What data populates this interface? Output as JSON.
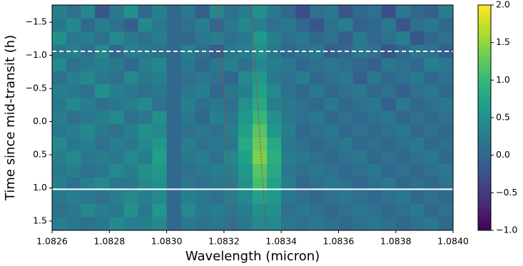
{
  "chart_data": {
    "type": "heatmap",
    "xlabel": "Wavelength (micron)",
    "ylabel": "Time since mid-transit (h)",
    "x": [
      1.082625,
      1.082675,
      1.082725,
      1.082775,
      1.082825,
      1.082875,
      1.082925,
      1.082975,
      1.083025,
      1.083075,
      1.083125,
      1.083175,
      1.083225,
      1.083275,
      1.083325,
      1.083375,
      1.083425,
      1.083475,
      1.083525,
      1.083575,
      1.083625,
      1.083675,
      1.083725,
      1.083775,
      1.083825,
      1.083875,
      1.083925,
      1.083975
    ],
    "y": [
      -1.66,
      -1.46,
      -1.26,
      -1.06,
      -0.86,
      -0.66,
      -0.46,
      -0.26,
      -0.06,
      0.14,
      0.34,
      0.54,
      0.74,
      0.94,
      1.14,
      1.34,
      1.54
    ],
    "z": [
      [
        0.3,
        0.1,
        0.4,
        -0.2,
        0.2,
        0.5,
        0.0,
        0.3,
        0,
        0.2,
        -0.1,
        0.4,
        0.1,
        0.3,
        0.5,
        0.2,
        0.0,
        -0.3,
        0.1,
        0.2,
        -0.2,
        0.0,
        0.1,
        -0.3,
        0.2,
        0.0,
        -0.1,
        0.3
      ],
      [
        0.2,
        0.4,
        0.0,
        0.3,
        0.1,
        -0.1,
        0.4,
        0.2,
        0,
        0.1,
        0.3,
        0.0,
        0.2,
        0.4,
        0.3,
        0.1,
        0.2,
        0.0,
        -0.2,
        0.1,
        0.3,
        -0.1,
        0.0,
        0.2,
        -0.2,
        0.1,
        0.2,
        0.0
      ],
      [
        0.5,
        0.2,
        0.3,
        0.1,
        0.4,
        0.2,
        0.1,
        0.3,
        0,
        0.0,
        0.2,
        0.3,
        0.1,
        0.2,
        0.6,
        0.3,
        0.1,
        0.2,
        0.0,
        0.1,
        -0.1,
        0.2,
        0.0,
        0.1,
        0.3,
        -0.2,
        0.0,
        0.1
      ],
      [
        0.2,
        0.3,
        0.1,
        0.4,
        0.0,
        0.3,
        0.2,
        0.1,
        0,
        0.3,
        0.1,
        -0.1,
        0.2,
        0.3,
        0.5,
        0.2,
        0.0,
        0.1,
        0.2,
        -0.1,
        0.0,
        0.2,
        0.1,
        -0.2,
        0.0,
        0.2,
        0.1,
        -0.1
      ],
      [
        0.4,
        0.1,
        0.2,
        0.3,
        0.2,
        0.0,
        0.3,
        0.4,
        0,
        0.2,
        0.0,
        0.2,
        0.3,
        0.1,
        0.4,
        0.3,
        0.2,
        0.0,
        0.1,
        0.2,
        0.1,
        0.0,
        -0.1,
        0.2,
        0.1,
        0.0,
        0.3,
        0.2
      ],
      [
        0.1,
        0.3,
        0.4,
        0.2,
        0.1,
        0.4,
        0.2,
        0.3,
        0,
        0.1,
        0.2,
        0.1,
        0.0,
        0.4,
        0.6,
        0.2,
        0.1,
        0.3,
        0.0,
        0.1,
        0.2,
        -0.1,
        0.2,
        0.0,
        0.1,
        0.2,
        0.0,
        0.1
      ],
      [
        0.3,
        0.2,
        0.1,
        0.5,
        0.3,
        0.2,
        0.1,
        0.2,
        0,
        0.2,
        0.3,
        0.0,
        0.2,
        0.3,
        0.7,
        0.4,
        0.1,
        0.0,
        0.2,
        0.0,
        0.1,
        0.2,
        0.0,
        0.1,
        -0.1,
        0.1,
        0.2,
        0.0
      ],
      [
        0.2,
        0.4,
        0.3,
        0.1,
        0.2,
        0.3,
        0.4,
        0.1,
        0,
        0.3,
        0.1,
        0.2,
        0.1,
        0.5,
        0.8,
        0.3,
        0.2,
        0.1,
        0.0,
        0.2,
        0.0,
        0.1,
        0.2,
        -0.1,
        0.2,
        0.0,
        0.1,
        0.2
      ],
      [
        0.3,
        0.1,
        0.2,
        0.3,
        0.4,
        0.1,
        0.2,
        0.5,
        0,
        0.2,
        0.0,
        0.3,
        0.2,
        0.6,
        1.0,
        0.5,
        0.2,
        0.1,
        0.2,
        0.0,
        0.1,
        0.0,
        0.1,
        0.2,
        0.0,
        0.1,
        0.0,
        0.1
      ],
      [
        0.2,
        0.3,
        0.4,
        0.2,
        0.1,
        0.3,
        0.5,
        0.4,
        0,
        0.1,
        0.2,
        0.1,
        0.3,
        0.7,
        1.2,
        0.6,
        0.3,
        0.0,
        0.1,
        0.2,
        0.0,
        0.1,
        0.0,
        0.1,
        0.2,
        0.0,
        0.1,
        0.0
      ],
      [
        0.4,
        0.2,
        0.3,
        0.1,
        0.3,
        0.2,
        0.4,
        0.6,
        0,
        0.3,
        0.1,
        0.2,
        0.2,
        0.8,
        1.3,
        0.8,
        0.2,
        0.1,
        0.0,
        0.1,
        0.2,
        0.0,
        0.1,
        0.0,
        0.1,
        0.2,
        0.0,
        0.1
      ],
      [
        0.3,
        0.4,
        0.2,
        0.3,
        0.2,
        0.4,
        0.3,
        0.7,
        0,
        0.2,
        0.3,
        0.1,
        0.4,
        0.7,
        1.4,
        0.9,
        0.3,
        0.2,
        0.1,
        0.0,
        0.1,
        0.2,
        0.0,
        0.1,
        0.0,
        0.1,
        0.2,
        0.0
      ],
      [
        0.2,
        0.3,
        0.1,
        0.2,
        0.4,
        0.3,
        0.5,
        0.6,
        0,
        0.1,
        0.2,
        0.3,
        0.3,
        0.6,
        1.2,
        0.8,
        0.2,
        0.1,
        0.2,
        0.1,
        0.0,
        0.1,
        0.2,
        0.0,
        0.1,
        0.0,
        0.1,
        0.2
      ],
      [
        0.3,
        0.1,
        0.3,
        0.4,
        0.2,
        0.2,
        0.4,
        0.5,
        0,
        0.2,
        0.1,
        0.2,
        0.2,
        0.5,
        1.1,
        0.7,
        0.3,
        0.0,
        0.1,
        0.2,
        0.1,
        0.0,
        0.1,
        0.2,
        0.0,
        0.1,
        0.0,
        0.1
      ],
      [
        0.2,
        0.3,
        0.2,
        0.1,
        0.3,
        0.4,
        0.3,
        0.4,
        0,
        0.3,
        0.2,
        0.1,
        0.3,
        0.4,
        0.7,
        0.6,
        0.2,
        0.1,
        0.0,
        0.1,
        0.2,
        0.1,
        0.0,
        0.1,
        0.2,
        0.0,
        0.1,
        0.0
      ],
      [
        0.1,
        0.2,
        0.4,
        0.3,
        0.2,
        0.5,
        0.2,
        0.6,
        0,
        0.4,
        0.2,
        0.3,
        0.2,
        0.3,
        0.5,
        0.5,
        0.1,
        0.2,
        0.1,
        0.0,
        0.1,
        0.2,
        0.1,
        0.0,
        0.1,
        0.2,
        0.0,
        0.1
      ],
      [
        0.3,
        0.2,
        0.1,
        0.2,
        0.4,
        0.3,
        0.3,
        0.4,
        0,
        0.2,
        0.1,
        0.2,
        0.1,
        0.2,
        0.4,
        0.4,
        0.2,
        0.1,
        0.2,
        0.1,
        0.0,
        0.1,
        0.2,
        0.1,
        0.0,
        0.1,
        0.2,
        0.0
      ]
    ],
    "xlim": [
      1.0826,
      1.084
    ],
    "xticks": [
      1.0826,
      1.0828,
      {
        "value": 1.083,
        "label": "1.0830"
      },
      1.0832,
      1.0834,
      1.0836,
      1.0838,
      {
        "value": 1.084,
        "label": "1.0840"
      }
    ],
    "ylim": [
      -1.76,
      1.64
    ],
    "invert_y": true,
    "yticks": [
      {
        "value": -1.5,
        "label": "−1.5"
      },
      {
        "value": -1.0,
        "label": "−1.0"
      },
      {
        "value": -0.5,
        "label": "−0.5"
      },
      {
        "value": 0,
        "label": "0.0"
      },
      {
        "value": 0.5,
        "label": "0.5"
      },
      {
        "value": 1.0,
        "label": "1.0"
      },
      {
        "value": 1.5,
        "label": "1.5"
      }
    ],
    "colormap": "viridis",
    "clim": [
      -1.0,
      2.0
    ],
    "cticks": [
      {
        "value": -1.0,
        "label": "−1.0"
      },
      {
        "value": -0.5,
        "label": "−0.5"
      },
      {
        "value": 0,
        "label": "0.0"
      },
      {
        "value": 0.5,
        "label": "0.5"
      },
      {
        "value": 1.0,
        "label": "1.0"
      },
      {
        "value": 1.5,
        "label": "1.5"
      },
      {
        "value": 2.0,
        "label": "2.0"
      }
    ],
    "hlines": [
      {
        "y": -1.06,
        "color": "#ffffff",
        "style": "dashed"
      },
      {
        "y": 1.02,
        "color": "#ffffff",
        "style": "solid"
      }
    ],
    "overlay_lines": [
      {
        "x": [
          1.083178,
          1.083233
        ],
        "y": [
          -1.76,
          1.64
        ],
        "color": "#d62728",
        "style": "dotted"
      },
      {
        "x": [
          1.083295,
          1.083347
        ],
        "y": [
          -1.76,
          1.64
        ],
        "color": "#d62728",
        "style": "dotted"
      }
    ]
  }
}
